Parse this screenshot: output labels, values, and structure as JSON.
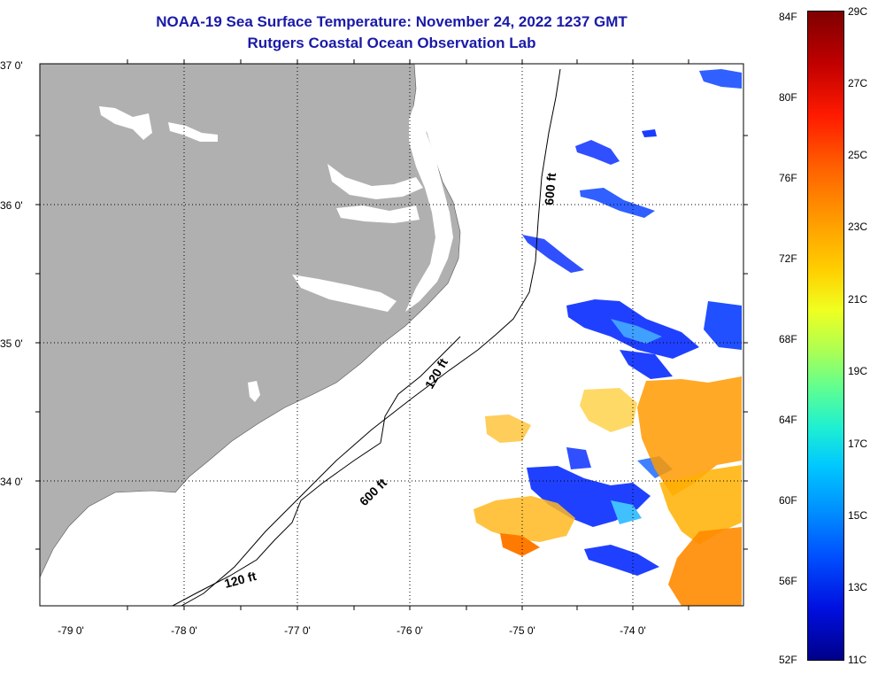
{
  "title_line1": "NOAA-19 Sea Surface Temperature:  November 24, 2022 1237 GMT",
  "title_line2": "Rutgers Coastal Ocean Observation Lab",
  "lat_labels": [
    "37 0'",
    "36 0'",
    "35 0'",
    "34 0'"
  ],
  "lon_labels": [
    "-79 0'",
    "-78 0'",
    "-77 0'",
    "-76 0'",
    "-75 0'",
    "-74 0'"
  ],
  "contour_labels": {
    "c600_north": "600 ft",
    "c120_mid": "120 ft",
    "c600_south": "600 ft",
    "c120_south": "120 ft"
  },
  "colorbar": {
    "fahrenheit": [
      "84F",
      "80F",
      "76F",
      "72F",
      "68F",
      "64F",
      "60F",
      "56F",
      "52F"
    ],
    "celsius": [
      "29C",
      "27C",
      "25C",
      "23C",
      "21C",
      "19C",
      "17C",
      "15C",
      "13C",
      "11C"
    ],
    "range_f": [
      52,
      84
    ],
    "range_c": [
      11,
      29
    ]
  },
  "colors": {
    "title": "#1a1aa8",
    "land": "#b0b0b0",
    "ocean": "#ffffff",
    "cold": "#1a3cff",
    "warm": "#ff9a00"
  }
}
